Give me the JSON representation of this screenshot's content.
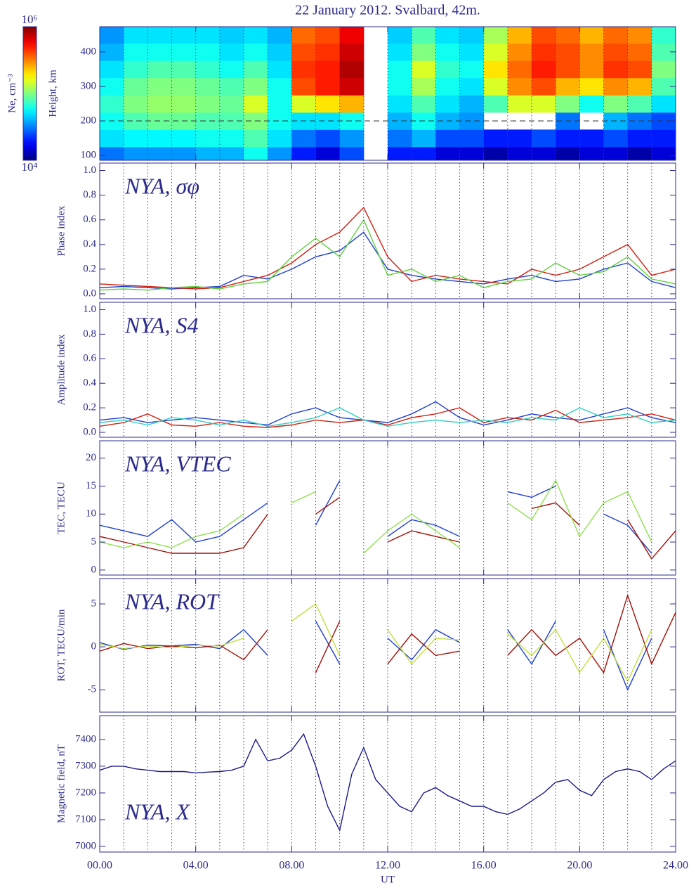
{
  "title": "22 January 2012. Svalbard, 42m.",
  "x_axis": {
    "label": "UT",
    "lim": [
      0,
      24
    ],
    "ticks": [
      {
        "value": 0,
        "label": "00.00"
      },
      {
        "value": 4,
        "label": "04.00"
      },
      {
        "value": 8,
        "label": "08.00"
      },
      {
        "value": 12,
        "label": "12.00"
      },
      {
        "value": 16,
        "label": "16.00"
      },
      {
        "value": 20,
        "label": "20.00"
      },
      {
        "value": 24,
        "label": "24.00"
      }
    ],
    "minor_ticks": [
      1,
      2,
      3,
      4,
      5,
      6,
      7,
      8,
      9,
      10,
      11,
      12,
      13,
      14,
      15,
      16,
      17,
      18,
      19,
      20,
      21,
      22,
      23
    ]
  },
  "chart_data": [
    {
      "type": "heatmap",
      "ylabel": "Height, km",
      "ylim": [
        86,
        473
      ],
      "yticks": [
        100,
        200,
        300,
        400
      ],
      "hline": 200,
      "colormap": "jet",
      "x": [
        0.5,
        1.5,
        2.5,
        3.5,
        4.5,
        5.5,
        6.5,
        7.5,
        8.5,
        9.5,
        10.5,
        11.5,
        12.5,
        13.5,
        14.5,
        15.5,
        16.5,
        17.5,
        18.5,
        19.5,
        20.5,
        21.5,
        22.5,
        23.5
      ],
      "y": [
        100,
        150,
        200,
        250,
        300,
        350,
        400,
        450
      ],
      "z": [
        [
          30000,
          35000,
          35000,
          35000,
          40000,
          40000,
          60000,
          35000,
          20000,
          15000,
          25000,
          null,
          20000,
          20000,
          15000,
          15000,
          12000,
          15000,
          15000,
          12000,
          15000,
          15000,
          12000,
          15000
        ],
        [
          50000,
          55000,
          55000,
          55000,
          60000,
          60000,
          80000,
          50000,
          30000,
          25000,
          35000,
          null,
          30000,
          40000,
          25000,
          25000,
          20000,
          20000,
          25000,
          20000,
          20000,
          25000,
          20000,
          20000
        ],
        [
          60000,
          80000,
          90000,
          90000,
          80000,
          80000,
          100000,
          60000,
          50000,
          50000,
          60000,
          null,
          40000,
          60000,
          40000,
          35000,
          null,
          null,
          null,
          30000,
          null,
          40000,
          30000,
          25000
        ],
        [
          70000,
          100000,
          110000,
          110000,
          100000,
          90000,
          150000,
          60000,
          150000,
          200000,
          250000,
          null,
          50000,
          80000,
          50000,
          40000,
          80000,
          150000,
          150000,
          100000,
          60000,
          100000,
          80000,
          50000
        ],
        [
          60000,
          90000,
          100000,
          100000,
          90000,
          80000,
          100000,
          60000,
          400000,
          500000,
          700000,
          null,
          60000,
          120000,
          60000,
          50000,
          150000,
          300000,
          400000,
          250000,
          200000,
          300000,
          250000,
          80000
        ],
        [
          50000,
          70000,
          80000,
          80000,
          70000,
          60000,
          80000,
          50000,
          450000,
          500000,
          800000,
          null,
          60000,
          150000,
          70000,
          60000,
          200000,
          350000,
          500000,
          400000,
          300000,
          450000,
          400000,
          100000
        ],
        [
          40000,
          60000,
          60000,
          60000,
          60000,
          50000,
          60000,
          45000,
          400000,
          450000,
          700000,
          null,
          50000,
          100000,
          60000,
          50000,
          150000,
          300000,
          450000,
          400000,
          300000,
          400000,
          350000,
          80000
        ],
        [
          35000,
          50000,
          50000,
          50000,
          50000,
          45000,
          50000,
          40000,
          350000,
          400000,
          600000,
          null,
          45000,
          80000,
          50000,
          45000,
          120000,
          250000,
          400000,
          350000,
          250000,
          350000,
          300000,
          70000
        ]
      ],
      "colorbar": {
        "label": "Ne, cm⁻³",
        "lim": [
          10000,
          1000000
        ],
        "log": true,
        "ticks": [
          {
            "value": 10000,
            "label": "10⁴"
          },
          {
            "value": 1000000,
            "label": "10⁶"
          }
        ]
      }
    },
    {
      "type": "line",
      "annotation": "NYA, σφ",
      "ylabel": "Phase index",
      "ylim": [
        -0.04,
        1.06
      ],
      "yticks": [
        {
          "value": 0,
          "label": "0.0"
        },
        0.2,
        0.4,
        0.6,
        0.8,
        {
          "value": 1,
          "label": "1.0"
        }
      ],
      "x": [
        0,
        1,
        2,
        3,
        4,
        5,
        6,
        7,
        8,
        9,
        10,
        11,
        12,
        13,
        14,
        15,
        16,
        17,
        18,
        19,
        20,
        21,
        22,
        23,
        24
      ],
      "series": [
        {
          "color": "#1f3fd0",
          "values": [
            0.05,
            0.06,
            0.05,
            0.04,
            0.05,
            0.06,
            0.15,
            0.12,
            0.2,
            0.3,
            0.35,
            0.5,
            0.2,
            0.15,
            0.12,
            0.1,
            0.08,
            0.12,
            0.15,
            0.1,
            0.12,
            0.2,
            0.25,
            0.1,
            0.05
          ]
        },
        {
          "color": "#d02010",
          "values": [
            0.08,
            0.07,
            0.06,
            0.05,
            0.04,
            0.05,
            0.1,
            0.15,
            0.25,
            0.4,
            0.5,
            0.7,
            0.3,
            0.1,
            0.15,
            0.12,
            0.1,
            0.08,
            0.2,
            0.15,
            0.2,
            0.3,
            0.4,
            0.15,
            0.2
          ]
        },
        {
          "color": "#60d040",
          "values": [
            0.03,
            0.04,
            0.03,
            0.05,
            0.06,
            0.04,
            0.08,
            0.1,
            0.3,
            0.45,
            0.3,
            0.6,
            0.15,
            0.2,
            0.1,
            0.15,
            0.05,
            0.1,
            0.12,
            0.25,
            0.15,
            0.18,
            0.3,
            0.12,
            0.08
          ]
        }
      ]
    },
    {
      "type": "line",
      "annotation": "NYA, S4",
      "ylabel": "Amplitude index",
      "ylim": [
        -0.04,
        1.06
      ],
      "yticks": [
        {
          "value": 0,
          "label": "0.0"
        },
        0.2,
        0.4,
        0.6,
        0.8,
        {
          "value": 1,
          "label": "1.0"
        }
      ],
      "x": [
        0,
        1,
        2,
        3,
        4,
        5,
        6,
        7,
        8,
        9,
        10,
        11,
        12,
        13,
        14,
        15,
        16,
        17,
        18,
        19,
        20,
        21,
        22,
        23,
        24
      ],
      "series": [
        {
          "color": "#1f3fd0",
          "values": [
            0.1,
            0.12,
            0.08,
            0.1,
            0.12,
            0.1,
            0.08,
            0.06,
            0.15,
            0.2,
            0.12,
            0.1,
            0.08,
            0.15,
            0.25,
            0.12,
            0.06,
            0.1,
            0.15,
            0.12,
            0.1,
            0.15,
            0.2,
            0.12,
            0.08
          ]
        },
        {
          "color": "#d02010",
          "values": [
            0.05,
            0.08,
            0.15,
            0.06,
            0.05,
            0.08,
            0.05,
            0.04,
            0.06,
            0.1,
            0.08,
            0.1,
            0.06,
            0.12,
            0.15,
            0.2,
            0.08,
            0.12,
            0.1,
            0.18,
            0.08,
            0.1,
            0.12,
            0.15,
            0.1
          ]
        },
        {
          "color": "#30d0c0",
          "values": [
            0.08,
            0.1,
            0.06,
            0.12,
            0.1,
            0.06,
            0.1,
            0.05,
            0.08,
            0.12,
            0.2,
            0.1,
            0.05,
            0.08,
            0.1,
            0.08,
            0.1,
            0.08,
            0.12,
            0.1,
            0.2,
            0.12,
            0.15,
            0.08,
            0.1
          ]
        }
      ]
    },
    {
      "type": "line",
      "annotation": "NYA, VTEC",
      "ylabel": "TEC, TECU",
      "ylim": [
        -0.9,
        23.1
      ],
      "yticks": [
        0,
        5,
        10,
        15,
        20
      ],
      "x": [
        0,
        1,
        2,
        3,
        4,
        5,
        6,
        7,
        8,
        9,
        10,
        11,
        12,
        13,
        14,
        15,
        16,
        17,
        18,
        19,
        20,
        21,
        22,
        23,
        24
      ],
      "series": [
        {
          "color": "#1f3fd0",
          "values": [
            8,
            7,
            6,
            9,
            5,
            6,
            9,
            12,
            null,
            8,
            16,
            null,
            6,
            9,
            8,
            6,
            null,
            14,
            13,
            15,
            null,
            10,
            8,
            3,
            null
          ]
        },
        {
          "color": "#a01008",
          "values": [
            6,
            5,
            4,
            3,
            3,
            3,
            4,
            10,
            null,
            10,
            13,
            null,
            5,
            7,
            6,
            5,
            null,
            null,
            11,
            12,
            8,
            null,
            9,
            2,
            7
          ]
        },
        {
          "color": "#90e050",
          "values": [
            5,
            4,
            5,
            4,
            6,
            7,
            10,
            null,
            12,
            14,
            null,
            3,
            7,
            10,
            7,
            4,
            null,
            12,
            9,
            16,
            6,
            12,
            14,
            5,
            null
          ]
        }
      ]
    },
    {
      "type": "line",
      "annotation": "NYA, ROT",
      "ylabel": "ROT, TECU/min",
      "ylim": [
        -7.6,
        7.95
      ],
      "yticks": [
        -5,
        0,
        5
      ],
      "x": [
        0,
        1,
        2,
        3,
        4,
        5,
        6,
        7,
        8,
        9,
        10,
        11,
        12,
        13,
        14,
        15,
        16,
        17,
        18,
        19,
        20,
        21,
        22,
        23,
        24
      ],
      "series": [
        {
          "color": "#1f3fd0",
          "values": [
            0.5,
            -0.3,
            0.2,
            0.1,
            0.3,
            -0.2,
            2,
            -1,
            null,
            3,
            -2,
            null,
            1,
            -1.5,
            2,
            0.5,
            null,
            2,
            -2,
            3,
            null,
            2,
            -5,
            1,
            null
          ]
        },
        {
          "color": "#a01008",
          "values": [
            -0.5,
            0.4,
            -0.2,
            0.1,
            -0.1,
            0.2,
            -1.5,
            2,
            null,
            -3,
            3,
            null,
            -2,
            1.5,
            -1,
            -0.5,
            null,
            -1,
            2,
            -1,
            1,
            -3,
            6,
            -2,
            4
          ]
        },
        {
          "color": "#c0e040",
          "values": [
            0.3,
            -0.2,
            0.1,
            -0.1,
            0.2,
            0.1,
            1,
            null,
            3,
            5,
            -1,
            null,
            2,
            -2,
            1,
            0.8,
            null,
            1.5,
            -1,
            2,
            -3,
            1,
            -4,
            2,
            null
          ]
        }
      ]
    },
    {
      "type": "line",
      "annotation": "NYA, X",
      "ylabel": "Magnetic field, nT",
      "ylim": [
        6979,
        7489
      ],
      "yticks": [
        7000,
        7100,
        7200,
        7300,
        7400
      ],
      "x": [
        0,
        0.5,
        1,
        1.5,
        2,
        2.5,
        3,
        3.5,
        4,
        4.5,
        5,
        5.5,
        6,
        6.5,
        7,
        7.5,
        8,
        8.5,
        9,
        9.5,
        10,
        10.5,
        11,
        11.5,
        12,
        12.5,
        13,
        13.5,
        14,
        14.5,
        15,
        15.5,
        16,
        16.5,
        17,
        17.5,
        18,
        18.5,
        19,
        19.5,
        20,
        20.5,
        21,
        21.5,
        22,
        22.5,
        23,
        23.5,
        24
      ],
      "series": [
        {
          "color": "#1a1a8a",
          "values": [
            7285,
            7300,
            7300,
            7290,
            7285,
            7280,
            7280,
            7280,
            7275,
            7278,
            7280,
            7285,
            7300,
            7400,
            7320,
            7330,
            7360,
            7420,
            7300,
            7150,
            7060,
            7270,
            7370,
            7250,
            7200,
            7150,
            7130,
            7200,
            7220,
            7190,
            7170,
            7150,
            7150,
            7130,
            7120,
            7140,
            7170,
            7200,
            7240,
            7250,
            7210,
            7190,
            7250,
            7280,
            7290,
            7280,
            7250,
            7290,
            7320
          ]
        }
      ]
    }
  ]
}
